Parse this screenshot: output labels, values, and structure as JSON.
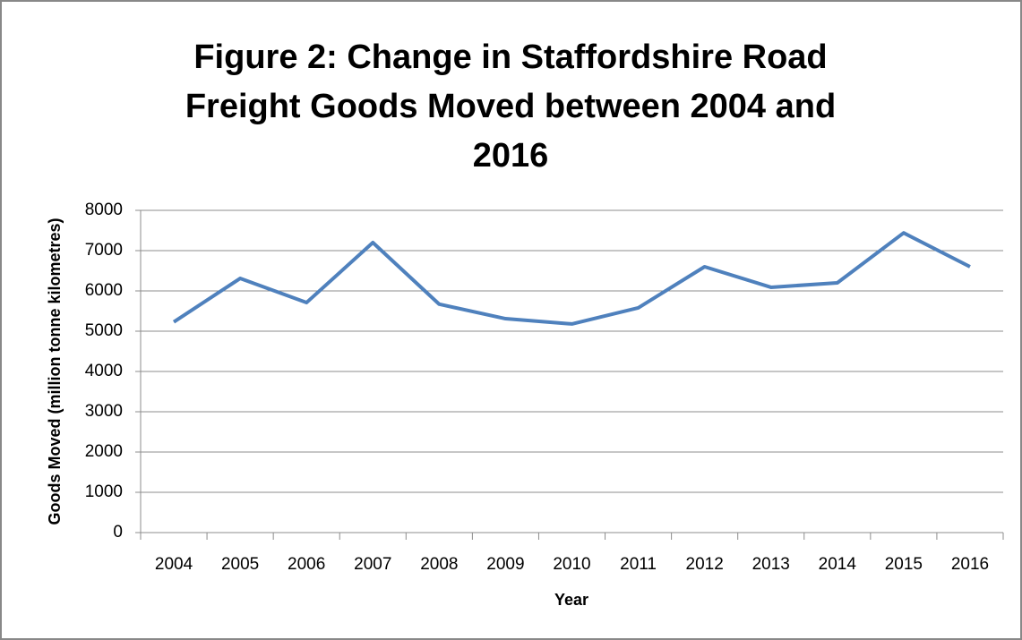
{
  "chart_data": {
    "type": "line",
    "title": [
      "Figure 2: Change in Staffordshire Road",
      "Freight Goods Moved between 2004 and",
      "2016"
    ],
    "x_label": "Year",
    "y_label": "Goods Moved (million tonne kilometres)",
    "categories": [
      "2004",
      "2005",
      "2006",
      "2007",
      "2008",
      "2009",
      "2010",
      "2011",
      "2012",
      "2013",
      "2014",
      "2015",
      "2016"
    ],
    "series": [
      {
        "color": "#4f81bd",
        "values": [
          5230,
          6310,
          5710,
          7200,
          5670,
          5310,
          5180,
          5580,
          6600,
          6090,
          6200,
          7440,
          6600
        ]
      }
    ],
    "ylim": [
      0,
      8000
    ],
    "yticks": [
      0,
      1000,
      2000,
      3000,
      4000,
      5000,
      6000,
      7000,
      8000
    ],
    "grid": true
  }
}
